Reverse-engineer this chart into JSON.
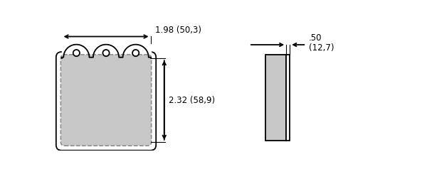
{
  "bg_color": "#ffffff",
  "line_color": "#000000",
  "pad_fill": "#c8c8c8",
  "dashed_color": "#888888",
  "width_label": "1.98 (50,3)",
  "height_label": "2.32 (58,9)",
  "thickness_label1": ".50",
  "thickness_label2": "(12,7)",
  "fig_width": 6.0,
  "fig_height": 2.38,
  "lw": 1.3
}
